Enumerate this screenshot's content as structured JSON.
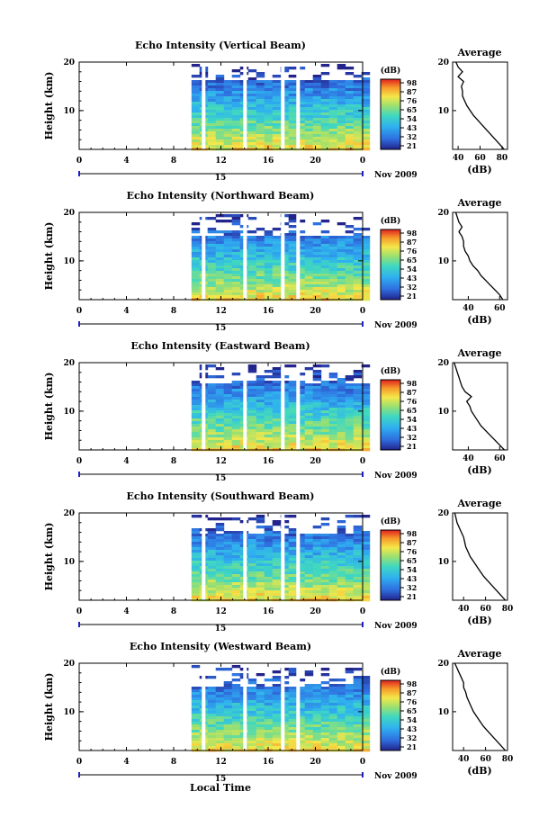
{
  "figure": {
    "x_axis_label": "Local Time",
    "date_label": "Nov 2009",
    "day_label": "15"
  },
  "chart_data": [
    {
      "type": "heatmap",
      "title": "Echo Intensity (Vertical Beam)",
      "ylabel": "Height (km)",
      "x_ticks": [
        "0",
        "4",
        "8",
        "12",
        "16",
        "20",
        "0"
      ],
      "xlim": [
        0,
        24
      ],
      "y_ticks": [
        "10",
        "20"
      ],
      "ylim": [
        2,
        20
      ],
      "data_start_hour": 9.5,
      "gaps_hours": [
        10.5,
        14.0,
        17.2,
        18.5
      ],
      "white_top_km": 16.5,
      "colorbar_label": "(dB)",
      "colorbar_ticks": [
        "98",
        "87",
        "76",
        "65",
        "54",
        "43",
        "32",
        "21"
      ],
      "profile": {
        "title": "Average",
        "xlabel": "(dB)",
        "x_ticks": [
          "40",
          "60",
          "80"
        ],
        "xlim": [
          35,
          85
        ],
        "y_ticks": [
          "10",
          "20"
        ],
        "ylim": [
          2,
          20
        ],
        "heights": [
          2,
          3,
          4,
          5,
          6,
          7,
          8,
          9,
          10,
          11,
          12,
          13,
          14,
          15,
          16,
          17,
          18,
          19,
          20
        ],
        "values": [
          82,
          78,
          74,
          70,
          66,
          62,
          58,
          54,
          51,
          48,
          46,
          44,
          44,
          43,
          45,
          40,
          44,
          40,
          38
        ]
      }
    },
    {
      "type": "heatmap",
      "title": "Echo Intensity (Northward Beam)",
      "ylabel": "Height (km)",
      "x_ticks": [
        "0",
        "4",
        "8",
        "12",
        "16",
        "20",
        "0"
      ],
      "xlim": [
        0,
        24
      ],
      "y_ticks": [
        "10",
        "20"
      ],
      "ylim": [
        2,
        20
      ],
      "data_start_hour": 9.5,
      "gaps_hours": [
        10.5,
        14.0,
        17.2,
        18.5
      ],
      "white_top_km": 15.5,
      "colorbar_label": "(dB)",
      "colorbar_ticks": [
        "98",
        "87",
        "76",
        "65",
        "54",
        "43",
        "32",
        "21"
      ],
      "profile": {
        "title": "Average",
        "xlabel": "(dB)",
        "x_ticks": [
          "40",
          "60"
        ],
        "xlim": [
          30,
          65
        ],
        "y_ticks": [
          "10",
          "20"
        ],
        "ylim": [
          2,
          20
        ],
        "heights": [
          2,
          3,
          4,
          5,
          6,
          7,
          8,
          9,
          10,
          11,
          12,
          13,
          14,
          15,
          16,
          17,
          18,
          19,
          20
        ],
        "values": [
          62,
          60,
          57,
          54,
          51,
          48,
          46,
          43,
          41,
          40,
          38,
          37,
          37,
          36,
          34,
          36,
          34,
          33,
          32
        ]
      }
    },
    {
      "type": "heatmap",
      "title": "Echo Intensity (Eastward Beam)",
      "ylabel": "Height (km)",
      "x_ticks": [
        "0",
        "4",
        "8",
        "12",
        "16",
        "20",
        "0"
      ],
      "xlim": [
        0,
        24
      ],
      "y_ticks": [
        "10",
        "20"
      ],
      "ylim": [
        2,
        20
      ],
      "data_start_hour": 9.5,
      "gaps_hours": [
        10.5,
        14.0,
        17.2,
        18.5
      ],
      "white_top_km": 15.8,
      "colorbar_label": "(dB)",
      "colorbar_ticks": [
        "98",
        "87",
        "76",
        "65",
        "54",
        "43",
        "32",
        "21"
      ],
      "profile": {
        "title": "Average",
        "xlabel": "(dB)",
        "x_ticks": [
          "40",
          "60"
        ],
        "xlim": [
          30,
          65
        ],
        "y_ticks": [
          "10",
          "20"
        ],
        "ylim": [
          2,
          20
        ],
        "heights": [
          2,
          3,
          4,
          5,
          6,
          7,
          8,
          9,
          10,
          11,
          12,
          13,
          14,
          15,
          16,
          17,
          18,
          19,
          20
        ],
        "values": [
          63,
          60,
          57,
          54,
          51,
          48,
          46,
          44,
          42,
          41,
          39,
          42,
          38,
          36,
          35,
          34,
          33,
          32,
          31
        ]
      }
    },
    {
      "type": "heatmap",
      "title": "Echo Intensity (Southward Beam)",
      "ylabel": "Height (km)",
      "x_ticks": [
        "0",
        "4",
        "8",
        "12",
        "16",
        "20",
        "0"
      ],
      "xlim": [
        0,
        24
      ],
      "y_ticks": [
        "10",
        "20"
      ],
      "ylim": [
        2,
        20
      ],
      "data_start_hour": 9.5,
      "gaps_hours": [
        10.5,
        14.0,
        17.2,
        18.5
      ],
      "white_top_km": 16.2,
      "colorbar_label": "(dB)",
      "colorbar_ticks": [
        "98",
        "87",
        "76",
        "65",
        "54",
        "43",
        "32",
        "21"
      ],
      "profile": {
        "title": "Average",
        "xlabel": "(dB)",
        "x_ticks": [
          "40",
          "60",
          "80"
        ],
        "xlim": [
          30,
          80
        ],
        "y_ticks": [
          "10",
          "20"
        ],
        "ylim": [
          2,
          20
        ],
        "heights": [
          2,
          3,
          4,
          5,
          6,
          7,
          8,
          9,
          10,
          11,
          12,
          13,
          14,
          15,
          16,
          17,
          18,
          19,
          20
        ],
        "values": [
          78,
          74,
          70,
          66,
          62,
          58,
          55,
          52,
          49,
          46,
          44,
          42,
          41,
          40,
          38,
          36,
          34,
          33,
          32
        ]
      }
    },
    {
      "type": "heatmap",
      "title": "Echo Intensity (Westward Beam)",
      "ylabel": "Height (km)",
      "x_ticks": [
        "0",
        "4",
        "8",
        "12",
        "16",
        "20",
        "0"
      ],
      "xlim": [
        0,
        24
      ],
      "y_ticks": [
        "10",
        "20"
      ],
      "ylim": [
        2,
        20
      ],
      "data_start_hour": 9.5,
      "gaps_hours": [
        10.5,
        14.0,
        17.2,
        18.5
      ],
      "white_top_km": 15.5,
      "colorbar_label": "(dB)",
      "colorbar_ticks": [
        "98",
        "87",
        "76",
        "65",
        "54",
        "43",
        "32",
        "21"
      ],
      "profile": {
        "title": "Average",
        "xlabel": "(dB)",
        "x_ticks": [
          "40",
          "60",
          "80"
        ],
        "xlim": [
          30,
          80
        ],
        "y_ticks": [
          "10",
          "20"
        ],
        "ylim": [
          2,
          20
        ],
        "heights": [
          2,
          3,
          4,
          5,
          6,
          7,
          8,
          9,
          10,
          11,
          12,
          13,
          14,
          15,
          16,
          17,
          18,
          19,
          20
        ],
        "values": [
          78,
          74,
          70,
          66,
          62,
          58,
          55,
          52,
          49,
          47,
          45,
          43,
          42,
          40,
          40,
          38,
          36,
          34,
          32
        ]
      }
    }
  ]
}
